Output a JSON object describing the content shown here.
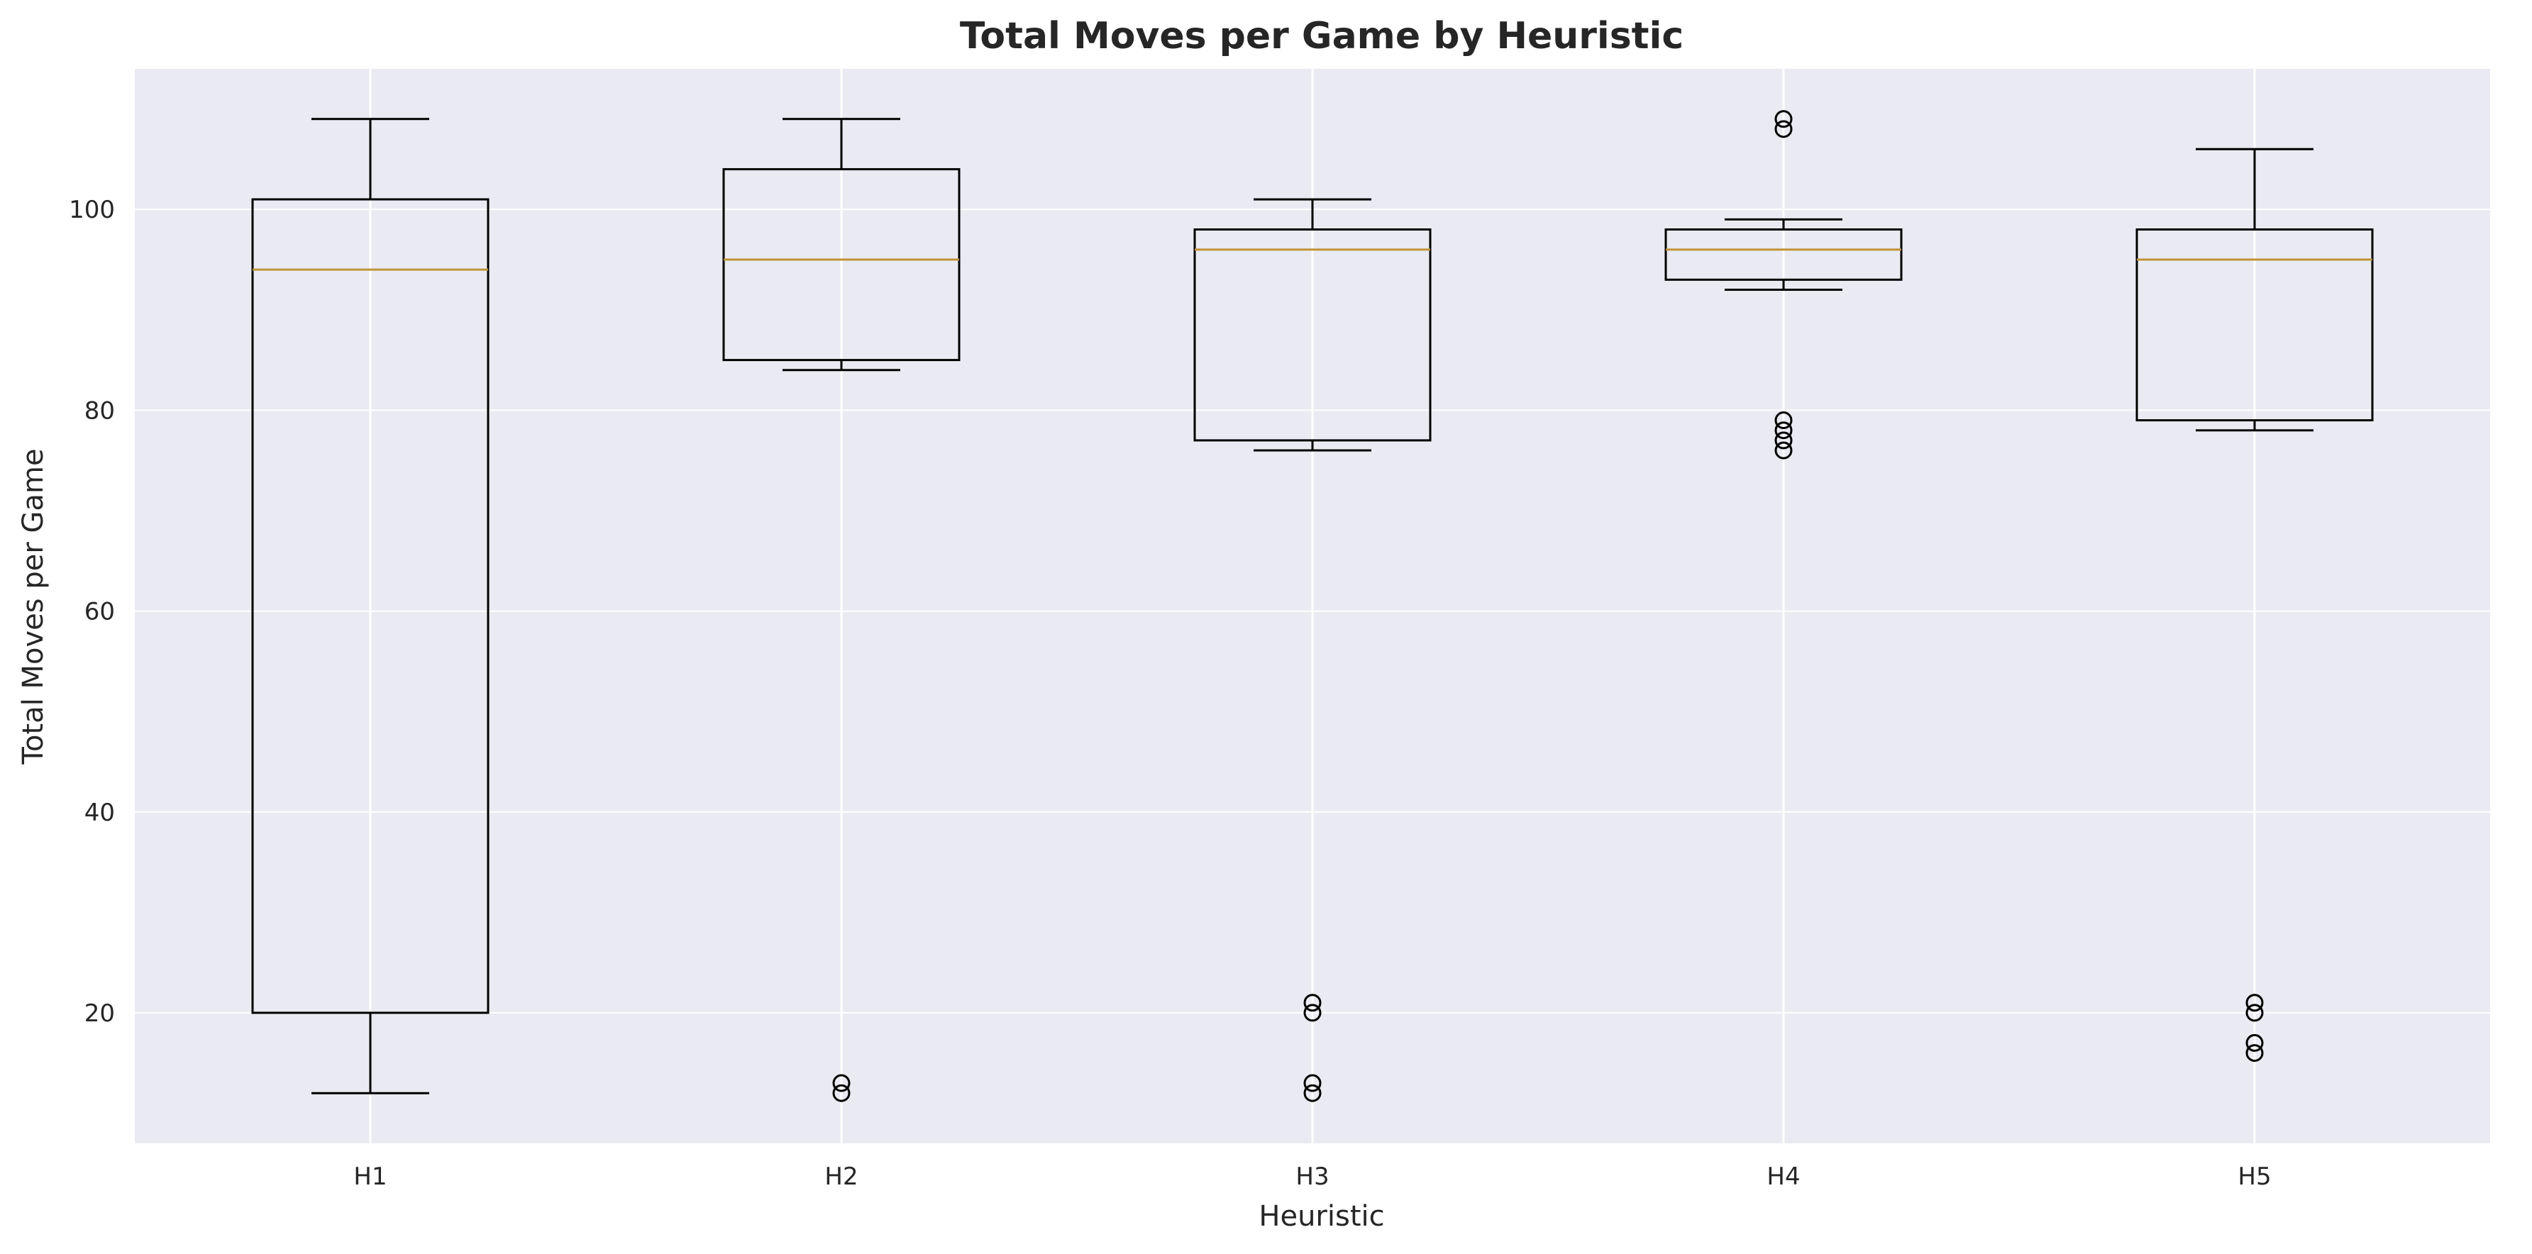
{
  "chart_data": {
    "type": "box",
    "title": "Total Moves per Game by Heuristic",
    "xlabel": "Heuristic",
    "ylabel": "Total Moves per Game",
    "ylim": [
      7,
      114
    ],
    "yticks": [
      20,
      40,
      60,
      80,
      100
    ],
    "grid": true,
    "categories": [
      "H1",
      "H2",
      "H3",
      "H4",
      "H5"
    ],
    "boxes": [
      {
        "label": "H1",
        "whisker_low": 12,
        "q1": 20,
        "median": 94,
        "q3": 101,
        "whisker_high": 109,
        "outliers": []
      },
      {
        "label": "H2",
        "whisker_low": 84,
        "q1": 85,
        "median": 95,
        "q3": 104,
        "whisker_high": 109,
        "outliers": [
          12,
          13
        ]
      },
      {
        "label": "H3",
        "whisker_low": 76,
        "q1": 77,
        "median": 96,
        "q3": 98,
        "whisker_high": 101,
        "outliers": [
          12,
          13,
          20,
          21
        ]
      },
      {
        "label": "H4",
        "whisker_low": 92,
        "q1": 93,
        "median": 96,
        "q3": 98,
        "whisker_high": 99,
        "outliers": [
          76,
          77,
          78,
          79,
          108,
          109
        ]
      },
      {
        "label": "H5",
        "whisker_low": 78,
        "q1": 79,
        "median": 95,
        "q3": 98,
        "whisker_high": 106,
        "outliers": [
          16,
          17,
          20,
          21
        ]
      }
    ],
    "colors": {
      "background": "#eaeaf2",
      "grid": "#ffffff",
      "box": "#000000",
      "median": "#c09336",
      "text": "#262626"
    }
  }
}
